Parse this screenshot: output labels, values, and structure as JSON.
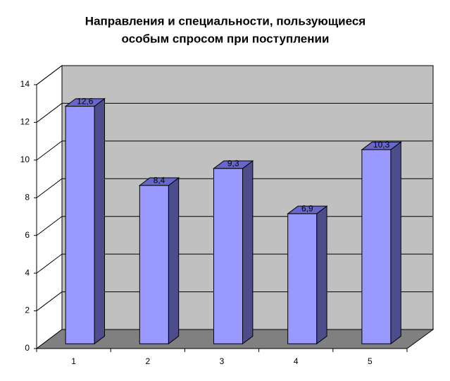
{
  "chart_data": {
    "type": "bar3d",
    "title": [
      "Направления и специальности, пользующиеся",
      "особым спросом при поступлении"
    ],
    "categories": [
      "1",
      "2",
      "3",
      "4",
      "5"
    ],
    "values": [
      12.6,
      8.4,
      9.3,
      6.9,
      10.3
    ],
    "value_labels": [
      "12,6",
      "8,4",
      "9,3",
      "6,9",
      "10,3"
    ],
    "color": "#9999ff",
    "ylim": [
      0,
      14
    ],
    "yticks": [
      0,
      2,
      4,
      6,
      8,
      10,
      12,
      14
    ],
    "grid": true
  }
}
